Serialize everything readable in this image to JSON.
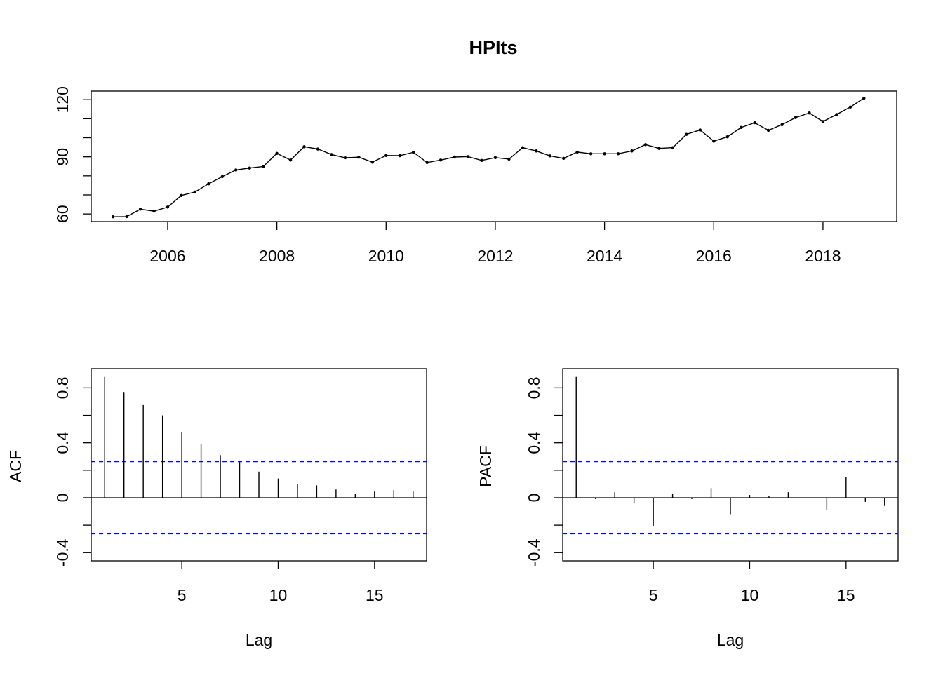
{
  "chart_data": [
    {
      "type": "line",
      "title": "HPIts",
      "xlabel": "",
      "ylabel": "",
      "xlim": [
        2004.6,
        2019.35
      ],
      "ylim": [
        56,
        124.5
      ],
      "x_ticks": [
        2006,
        2008,
        2010,
        2012,
        2014,
        2016,
        2018
      ],
      "y_ticks": [
        60,
        90,
        120
      ],
      "y_minor_ticks": [
        70,
        80,
        100,
        110
      ],
      "grid": false,
      "series": [
        {
          "x_start": 2005.0,
          "x_step": 0.25,
          "values": [
            58.5,
            58.6,
            62.5,
            61.5,
            63.6,
            69.7,
            71.5,
            75.8,
            79.6,
            83.1,
            84.1,
            84.9,
            91.8,
            88.3,
            95.3,
            94.1,
            91.2,
            89.5,
            89.8,
            87.2,
            90.7,
            90.6,
            92.4,
            87.0,
            88.3,
            89.9,
            90.1,
            88.1,
            89.6,
            88.8,
            94.8,
            93.1,
            90.5,
            89.2,
            92.5,
            91.6,
            91.6,
            91.6,
            93.1,
            96.4,
            94.4,
            94.8,
            101.8,
            104.1,
            98.2,
            100.5,
            105.4,
            107.9,
            103.9,
            106.9,
            110.6,
            113.0,
            108.5,
            112.2,
            116.1,
            120.8
          ]
        }
      ]
    },
    {
      "type": "bar",
      "title": "",
      "xlabel": "Lag",
      "ylabel": "ACF",
      "xlim": [
        0.3,
        17.7
      ],
      "ylim": [
        -0.46,
        0.94
      ],
      "x_ticks": [
        5,
        10,
        15
      ],
      "y_ticks": [
        -0.4,
        0.0,
        0.4,
        0.8
      ],
      "y_minor_ticks": [
        -0.2,
        0.2,
        0.6
      ],
      "ci": 0.263,
      "lags": [
        1,
        2,
        3,
        4,
        5,
        6,
        7,
        8,
        9,
        10,
        11,
        12,
        13,
        14,
        15,
        16,
        17
      ],
      "values": [
        0.88,
        0.77,
        0.68,
        0.6,
        0.48,
        0.39,
        0.31,
        0.26,
        0.19,
        0.14,
        0.1,
        0.09,
        0.06,
        0.03,
        0.045,
        0.055,
        0.045
      ]
    },
    {
      "type": "bar",
      "title": "",
      "xlabel": "Lag",
      "ylabel": "PACF",
      "xlim": [
        0.3,
        17.7
      ],
      "ylim": [
        -0.46,
        0.94
      ],
      "x_ticks": [
        5,
        10,
        15
      ],
      "y_ticks": [
        -0.4,
        0.0,
        0.4,
        0.8
      ],
      "y_minor_ticks": [
        -0.2,
        0.2,
        0.6
      ],
      "ci": 0.263,
      "lags": [
        1,
        2,
        3,
        4,
        5,
        6,
        7,
        8,
        9,
        10,
        11,
        12,
        13,
        14,
        15,
        16,
        17
      ],
      "values": [
        0.88,
        -0.01,
        0.04,
        -0.04,
        -0.21,
        0.03,
        -0.01,
        0.07,
        -0.12,
        0.02,
        0.01,
        0.04,
        0.0,
        -0.09,
        0.15,
        -0.03,
        -0.06
      ]
    }
  ]
}
